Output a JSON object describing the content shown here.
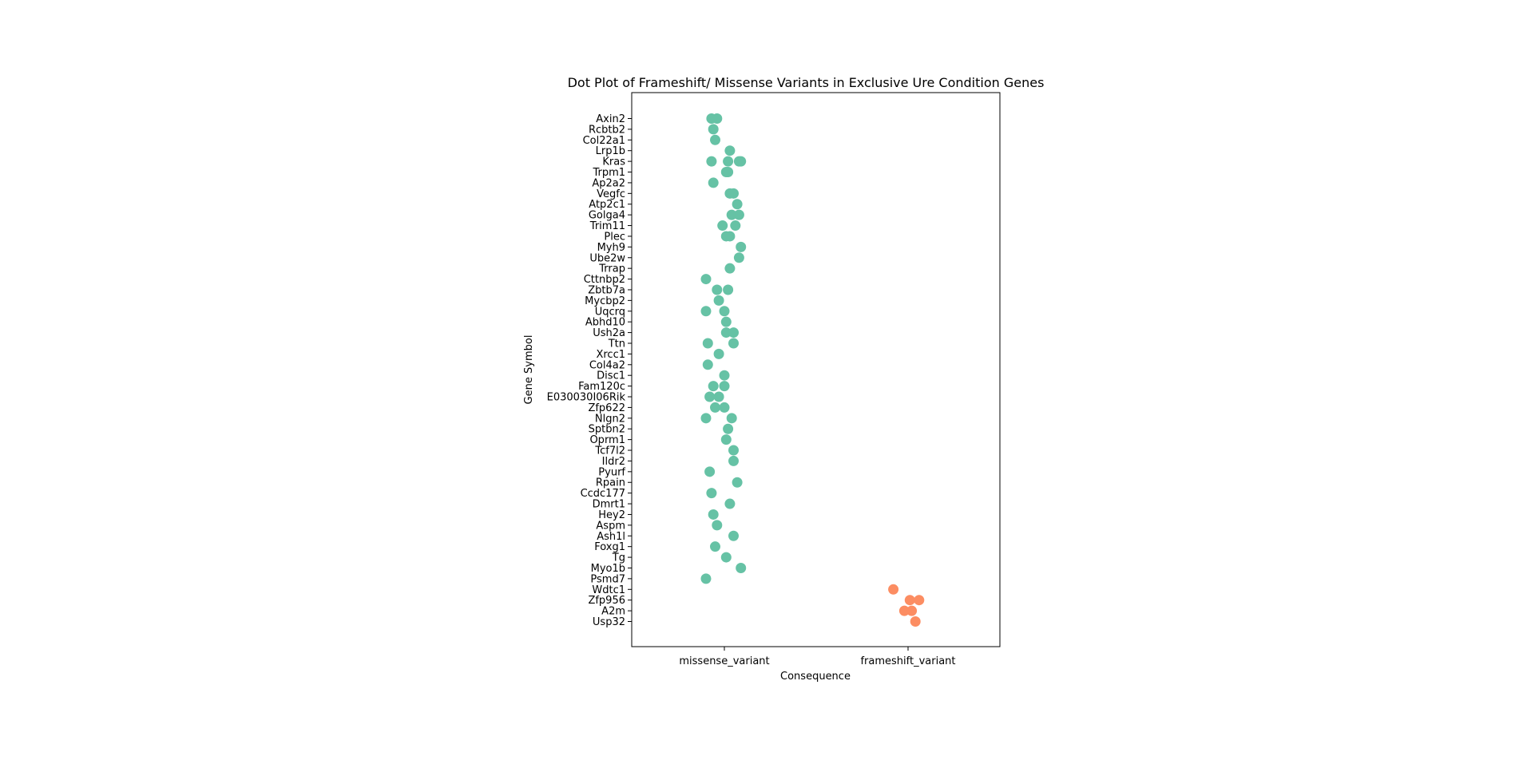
{
  "chart_data": {
    "type": "scatter",
    "title": "Dot Plot of Frameshift/ Missense Variants in Exclusive Ure Condition Genes",
    "xlabel": "Consequence",
    "ylabel": "Gene Symbol",
    "categories": [
      "missense_variant",
      "frameshift_variant"
    ],
    "genes": [
      "Axin2",
      "Rcbtb2",
      "Col22a1",
      "Lrp1b",
      "Kras",
      "Trpm1",
      "Ap2a2",
      "Vegfc",
      "Atp2c1",
      "Golga4",
      "Trim11",
      "Plec",
      "Myh9",
      "Ube2w",
      "Trrap",
      "Cttnbp2",
      "Zbtb7a",
      "Mycbp2",
      "Uqcrq",
      "Abhd10",
      "Ush2a",
      "Ttn",
      "Xrcc1",
      "Col4a2",
      "Disc1",
      "Fam120c",
      "E030030I06Rik",
      "Zfp622",
      "Nlgn2",
      "Sptbn2",
      "Oprm1",
      "Tcf7l2",
      "Ildr2",
      "Pyurf",
      "Rpain",
      "Ccdc177",
      "Dmrt1",
      "Hey2",
      "Aspm",
      "Ash1l",
      "Foxg1",
      "Tg",
      "Myo1b",
      "Psmd7",
      "Wdtc1",
      "Zfp956",
      "A2m",
      "Usp32"
    ],
    "series": [
      {
        "category": "missense_variant",
        "color": "#66c2a5",
        "points": [
          {
            "gene": "Axin2",
            "jitter": -0.07
          },
          {
            "gene": "Axin2",
            "jitter": -0.04
          },
          {
            "gene": "Rcbtb2",
            "jitter": -0.06
          },
          {
            "gene": "Col22a1",
            "jitter": -0.05
          },
          {
            "gene": "Lrp1b",
            "jitter": 0.03
          },
          {
            "gene": "Kras",
            "jitter": -0.07
          },
          {
            "gene": "Kras",
            "jitter": 0.02
          },
          {
            "gene": "Kras",
            "jitter": 0.08
          },
          {
            "gene": "Kras",
            "jitter": 0.09
          },
          {
            "gene": "Trpm1",
            "jitter": 0.01
          },
          {
            "gene": "Trpm1",
            "jitter": 0.02
          },
          {
            "gene": "Ap2a2",
            "jitter": -0.06
          },
          {
            "gene": "Vegfc",
            "jitter": 0.03
          },
          {
            "gene": "Vegfc",
            "jitter": 0.05
          },
          {
            "gene": "Atp2c1",
            "jitter": 0.07
          },
          {
            "gene": "Golga4",
            "jitter": 0.04
          },
          {
            "gene": "Golga4",
            "jitter": 0.08
          },
          {
            "gene": "Trim11",
            "jitter": -0.01
          },
          {
            "gene": "Trim11",
            "jitter": 0.06
          },
          {
            "gene": "Plec",
            "jitter": 0.01
          },
          {
            "gene": "Plec",
            "jitter": 0.03
          },
          {
            "gene": "Myh9",
            "jitter": 0.09
          },
          {
            "gene": "Ube2w",
            "jitter": 0.08
          },
          {
            "gene": "Trrap",
            "jitter": 0.03
          },
          {
            "gene": "Cttnbp2",
            "jitter": -0.1
          },
          {
            "gene": "Zbtb7a",
            "jitter": -0.04
          },
          {
            "gene": "Zbtb7a",
            "jitter": 0.02
          },
          {
            "gene": "Mycbp2",
            "jitter": -0.03
          },
          {
            "gene": "Uqcrq",
            "jitter": -0.1
          },
          {
            "gene": "Uqcrq",
            "jitter": 0.0
          },
          {
            "gene": "Abhd10",
            "jitter": 0.01
          },
          {
            "gene": "Ush2a",
            "jitter": 0.01
          },
          {
            "gene": "Ush2a",
            "jitter": 0.05
          },
          {
            "gene": "Ttn",
            "jitter": -0.09
          },
          {
            "gene": "Ttn",
            "jitter": 0.05
          },
          {
            "gene": "Xrcc1",
            "jitter": -0.03
          },
          {
            "gene": "Col4a2",
            "jitter": -0.09
          },
          {
            "gene": "Disc1",
            "jitter": 0.0
          },
          {
            "gene": "Fam120c",
            "jitter": -0.06
          },
          {
            "gene": "Fam120c",
            "jitter": 0.0
          },
          {
            "gene": "E030030I06Rik",
            "jitter": -0.08
          },
          {
            "gene": "E030030I06Rik",
            "jitter": -0.03
          },
          {
            "gene": "Zfp622",
            "jitter": -0.05
          },
          {
            "gene": "Zfp622",
            "jitter": 0.0
          },
          {
            "gene": "Nlgn2",
            "jitter": -0.1
          },
          {
            "gene": "Nlgn2",
            "jitter": 0.04
          },
          {
            "gene": "Sptbn2",
            "jitter": 0.02
          },
          {
            "gene": "Oprm1",
            "jitter": 0.01
          },
          {
            "gene": "Tcf7l2",
            "jitter": 0.05
          },
          {
            "gene": "Ildr2",
            "jitter": 0.05
          },
          {
            "gene": "Pyurf",
            "jitter": -0.08
          },
          {
            "gene": "Rpain",
            "jitter": 0.07
          },
          {
            "gene": "Ccdc177",
            "jitter": -0.07
          },
          {
            "gene": "Dmrt1",
            "jitter": 0.03
          },
          {
            "gene": "Hey2",
            "jitter": -0.06
          },
          {
            "gene": "Aspm",
            "jitter": -0.04
          },
          {
            "gene": "Ash1l",
            "jitter": 0.05
          },
          {
            "gene": "Foxg1",
            "jitter": -0.05
          },
          {
            "gene": "Tg",
            "jitter": 0.01
          },
          {
            "gene": "Myo1b",
            "jitter": 0.09
          },
          {
            "gene": "Psmd7",
            "jitter": -0.1
          }
        ]
      },
      {
        "category": "frameshift_variant",
        "color": "#fc8d62",
        "points": [
          {
            "gene": "Wdtc1",
            "jitter": -0.08
          },
          {
            "gene": "Zfp956",
            "jitter": 0.01
          },
          {
            "gene": "Zfp956",
            "jitter": 0.06
          },
          {
            "gene": "A2m",
            "jitter": -0.02
          },
          {
            "gene": "A2m",
            "jitter": 0.02
          },
          {
            "gene": "Usp32",
            "jitter": 0.04
          }
        ]
      }
    ]
  }
}
